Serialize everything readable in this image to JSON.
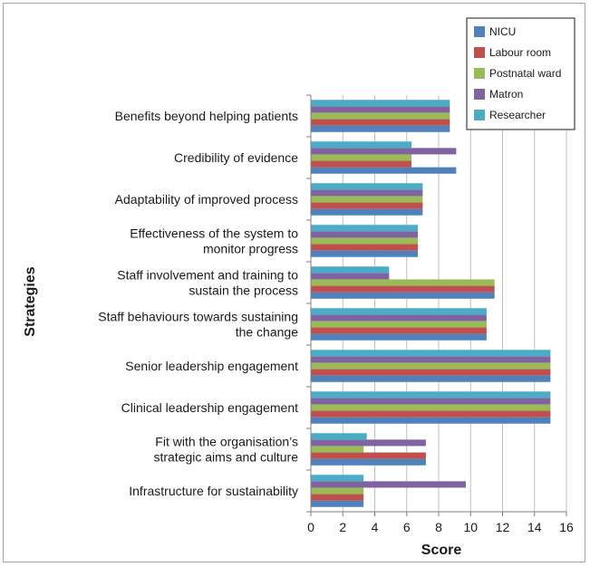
{
  "chart_data": {
    "type": "bar",
    "orientation": "horizontal",
    "xlabel": "Score",
    "ylabel": "Strategies",
    "xlim": [
      0,
      16
    ],
    "xticks": [
      "0",
      "2",
      "4",
      "6",
      "8",
      "10",
      "12",
      "14",
      "16"
    ],
    "grid": "vertical",
    "legend_position": "top-right",
    "categories": [
      [
        "Benefits beyond helping patients"
      ],
      [
        "Credibility of evidence"
      ],
      [
        "Adaptability of improved process"
      ],
      [
        "Effectiveness of the system to",
        "monitor progress"
      ],
      [
        "Staff involvement and training to",
        "sustain the process"
      ],
      [
        "Staff behaviours towards sustaining",
        "the change"
      ],
      [
        "Senior leadership engagement"
      ],
      [
        "Clinical leadership engagement"
      ],
      [
        "Fit with the organisation’s",
        "strategic aims and culture"
      ],
      [
        "Infrastructure for sustainability"
      ]
    ],
    "series": [
      {
        "name": "NICU",
        "color": "#4f81bd",
        "values": [
          8.7,
          9.1,
          7.0,
          6.7,
          11.5,
          11.0,
          15.0,
          15.0,
          7.2,
          3.3
        ]
      },
      {
        "name": "Labour room",
        "color": "#c0504d",
        "values": [
          8.7,
          6.3,
          7.0,
          6.7,
          11.5,
          11.0,
          15.0,
          15.0,
          7.2,
          3.3
        ]
      },
      {
        "name": "Postnatal ward",
        "color": "#9bbb59",
        "values": [
          8.7,
          6.3,
          7.0,
          6.7,
          11.5,
          11.0,
          15.0,
          15.0,
          3.3,
          3.3
        ]
      },
      {
        "name": "Matron",
        "color": "#8064a2",
        "values": [
          8.7,
          9.1,
          7.0,
          6.7,
          4.9,
          11.0,
          15.0,
          15.0,
          7.2,
          9.7
        ]
      },
      {
        "name": "Researcher",
        "color": "#4bacc6",
        "values": [
          8.7,
          6.3,
          7.0,
          6.7,
          4.9,
          11.0,
          15.0,
          15.0,
          3.5,
          3.3
        ]
      }
    ]
  }
}
